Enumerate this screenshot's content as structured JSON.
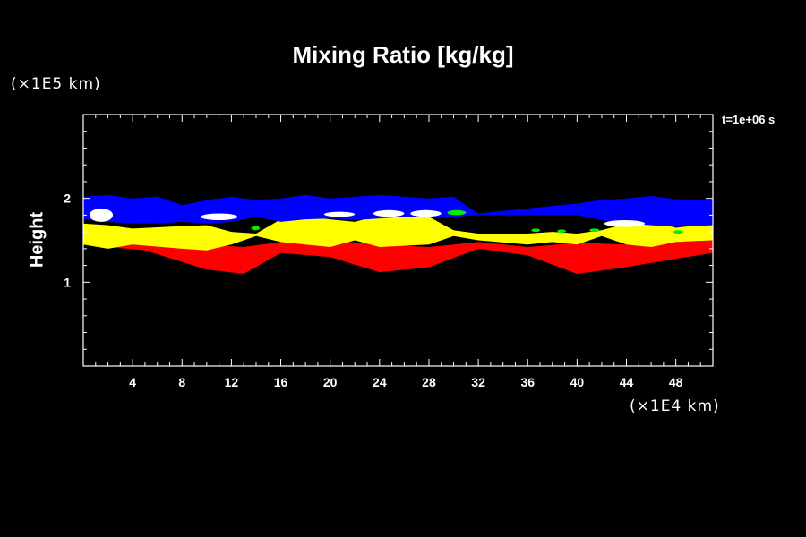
{
  "chart_data": {
    "type": "heatmap",
    "title": "Mixing Ratio [kg/kg]",
    "ylabel": "Height",
    "x_unit": "(×1E4 km)",
    "y_unit": "(×1E5 km)",
    "time_label": "t=1e+06 s",
    "xlim": [
      0,
      51
    ],
    "ylim": [
      0,
      3
    ],
    "x_ticks": [
      4,
      8,
      12,
      16,
      20,
      24,
      28,
      32,
      36,
      40,
      44,
      48
    ],
    "x_tick_labels": [
      "4",
      "8",
      "12",
      "16",
      "20",
      "24",
      "28",
      "32",
      "36",
      "40",
      "44",
      "48"
    ],
    "y_ticks": [
      1,
      2
    ],
    "y_tick_labels": [
      "1",
      "2"
    ],
    "colors": {
      "background": "#000000",
      "red": "#ff0000",
      "yellow": "#ffff00",
      "green": "#00ee00",
      "white": "#ffffff",
      "blue": "#0000ff"
    },
    "layers": [
      {
        "color": "red",
        "x": [
          0,
          5,
          10,
          13,
          16,
          20,
          24,
          28,
          32,
          36,
          40,
          44,
          48,
          51
        ],
        "bottom": [
          1.45,
          1.38,
          1.15,
          1.1,
          1.35,
          1.3,
          1.12,
          1.18,
          1.4,
          1.32,
          1.1,
          1.18,
          1.28,
          1.35
        ],
        "top": [
          1.52,
          1.5,
          1.45,
          1.42,
          1.48,
          1.5,
          1.45,
          1.42,
          1.48,
          1.42,
          1.47,
          1.45,
          1.48,
          1.5
        ]
      },
      {
        "color": "yellow",
        "x": [
          0,
          2,
          4,
          8,
          10,
          12,
          14,
          16,
          18,
          20,
          22,
          24,
          28,
          30,
          32,
          36,
          38,
          40,
          42,
          44,
          46,
          48,
          51
        ],
        "bottom": [
          1.45,
          1.4,
          1.45,
          1.4,
          1.38,
          1.45,
          1.55,
          1.48,
          1.45,
          1.42,
          1.5,
          1.42,
          1.45,
          1.55,
          1.5,
          1.45,
          1.48,
          1.45,
          1.55,
          1.45,
          1.42,
          1.48,
          1.5
        ],
        "top": [
          1.7,
          1.68,
          1.64,
          1.67,
          1.68,
          1.6,
          1.58,
          1.75,
          1.78,
          1.75,
          1.72,
          1.8,
          1.78,
          1.62,
          1.58,
          1.58,
          1.6,
          1.58,
          1.62,
          1.7,
          1.75,
          1.65,
          1.7
        ]
      },
      {
        "color": "blue",
        "x": [
          0,
          2,
          4,
          6,
          8,
          10,
          12,
          14,
          16,
          18,
          20,
          22,
          24,
          26,
          28,
          30,
          32,
          40,
          42,
          44,
          46,
          48,
          51
        ],
        "bottom": [
          1.75,
          1.72,
          1.7,
          1.7,
          1.72,
          1.7,
          1.72,
          1.78,
          1.72,
          1.75,
          1.76,
          1.74,
          1.76,
          1.78,
          1.78,
          1.78,
          1.8,
          1.8,
          1.74,
          1.7,
          1.68,
          1.66,
          1.68
        ],
        "top": [
          2.02,
          2.04,
          2.0,
          2.02,
          1.92,
          1.98,
          2.02,
          1.98,
          2.0,
          2.04,
          2.0,
          2.02,
          2.04,
          2.02,
          2.0,
          2.02,
          1.82,
          1.94,
          1.98,
          2.0,
          2.03,
          1.99,
          1.98
        ]
      },
      {
        "color": "white",
        "patches": [
          [
            0.5,
            1.72,
            2.4,
            1.88
          ],
          [
            9.5,
            1.74,
            12.5,
            1.82
          ],
          [
            19.5,
            1.78,
            22,
            1.84
          ],
          [
            23.5,
            1.78,
            26,
            1.86
          ],
          [
            26.5,
            1.78,
            29,
            1.86
          ],
          [
            42.2,
            1.66,
            45.5,
            1.74
          ]
        ]
      },
      {
        "color": "green",
        "patches": [
          [
            13.6,
            1.62,
            14.3,
            1.67
          ],
          [
            29.5,
            1.8,
            31,
            1.86
          ],
          [
            36.3,
            1.6,
            37,
            1.64
          ],
          [
            38.4,
            1.59,
            39.1,
            1.63
          ],
          [
            41.0,
            1.6,
            41.8,
            1.64
          ],
          [
            47.8,
            1.58,
            48.6,
            1.62
          ]
        ]
      }
    ]
  }
}
